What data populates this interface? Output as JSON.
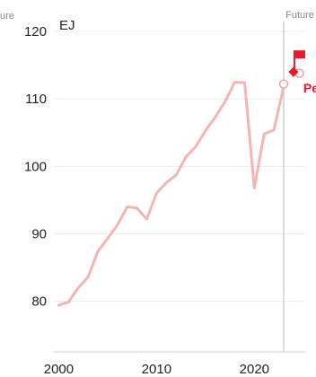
{
  "chart_data": {
    "type": "line",
    "title": "",
    "ylabel": "EJ",
    "xlabel": "",
    "x_ticks": [
      2000,
      2010,
      2020
    ],
    "y_ticks": [
      80,
      90,
      100,
      110,
      120
    ],
    "xlim": [
      1999.5,
      2025.2
    ],
    "ylim": [
      72.5,
      122
    ],
    "grid": true,
    "colors": {
      "line": "#f4b4b4",
      "accent": "#e8192c",
      "future_line": "#bbbbbb"
    },
    "series": [
      {
        "values": [
          {
            "x": 2000,
            "y": 79.4
          },
          {
            "x": 2001,
            "y": 79.9
          },
          {
            "x": 2002,
            "y": 82.0
          },
          {
            "x": 2003,
            "y": 83.6
          },
          {
            "x": 2004,
            "y": 87.4
          },
          {
            "x": 2005,
            "y": 89.3
          },
          {
            "x": 2006,
            "y": 91.3
          },
          {
            "x": 2007,
            "y": 94.0
          },
          {
            "x": 2008,
            "y": 93.8
          },
          {
            "x": 2009,
            "y": 92.2
          },
          {
            "x": 2010,
            "y": 96.0
          },
          {
            "x": 2011,
            "y": 97.6
          },
          {
            "x": 2012,
            "y": 98.7
          },
          {
            "x": 2013,
            "y": 101.4
          },
          {
            "x": 2014,
            "y": 102.9
          },
          {
            "x": 2015,
            "y": 105.3
          },
          {
            "x": 2016,
            "y": 107.3
          },
          {
            "x": 2017,
            "y": 109.6
          },
          {
            "x": 2018,
            "y": 112.5
          },
          {
            "x": 2019,
            "y": 112.4
          },
          {
            "x": 2020,
            "y": 96.8
          },
          {
            "x": 2021,
            "y": 104.8
          },
          {
            "x": 2022,
            "y": 105.4
          },
          {
            "x": 2023,
            "y": 111.8
          }
        ]
      }
    ],
    "projection": {
      "future_start_x": 2023,
      "future_label": "Future",
      "peak_label": "Pea",
      "peak_point": {
        "x": 2024,
        "y": 114.0
      },
      "open_markers": [
        {
          "x": 2023,
          "y": 112.2
        },
        {
          "x": 2024.6,
          "y": 113.8
        }
      ],
      "flag_icon": "flag-icon"
    },
    "left_edge_fragment": "ure"
  }
}
